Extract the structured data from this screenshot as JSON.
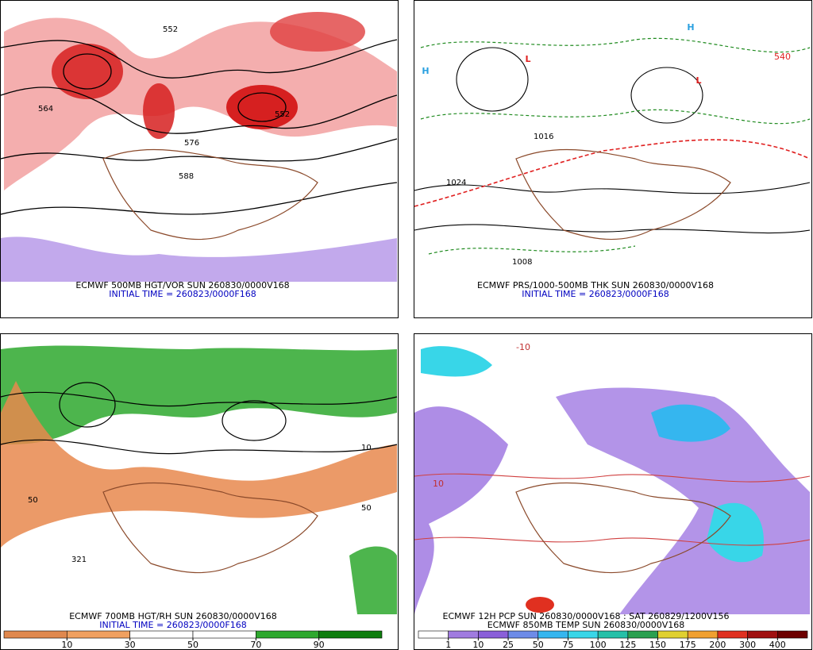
{
  "panels": [
    {
      "title": "ECMWF 500MB HGT/VOR SUN 260830/0000V168",
      "subtitle": "INITIAL TIME = 260823/0000F168",
      "labels": [
        "564",
        "552",
        "576",
        "588",
        "552"
      ]
    },
    {
      "title": "ECMWF PRS/1000-500MB THK SUN 260830/0000V168",
      "subtitle": "INITIAL TIME = 260823/0000F168",
      "labels": [
        "H",
        "L",
        "1024",
        "1008",
        "1016",
        "540",
        "L",
        "H"
      ]
    },
    {
      "title": "ECMWF 700MB HGT/RH SUN 260830/0000V168",
      "subtitle": "INITIAL TIME = 260823/0000F168",
      "labels": [
        "50",
        "10",
        "321",
        "50"
      ],
      "colorbar": {
        "ticks": [
          10,
          30,
          50,
          70,
          90
        ],
        "colors": [
          "#e0884e",
          "#f0a060",
          "#ffffff",
          "#ffffff",
          "#2ea82e",
          "#0e7d0e"
        ]
      }
    },
    {
      "title": "ECMWF 12H PCP SUN 260830/0000V168 : SAT 260829/1200V156",
      "subtitle": "ECMWF 850MB TEMP SUN 260830/0000V168",
      "labels": [
        "-10",
        "10"
      ],
      "colorbar": {
        "ticks": [
          1,
          10,
          25,
          50,
          75,
          100,
          125,
          150,
          175,
          200,
          300,
          400
        ],
        "colors": [
          "#ffffff",
          "#a07be0",
          "#8a5fd9",
          "#6d8be8",
          "#35b6ef",
          "#38d6e8",
          "#25c0a8",
          "#2aa050",
          "#e0d030",
          "#f0a030",
          "#e03020",
          "#a01010",
          "#6d0000"
        ]
      }
    }
  ]
}
